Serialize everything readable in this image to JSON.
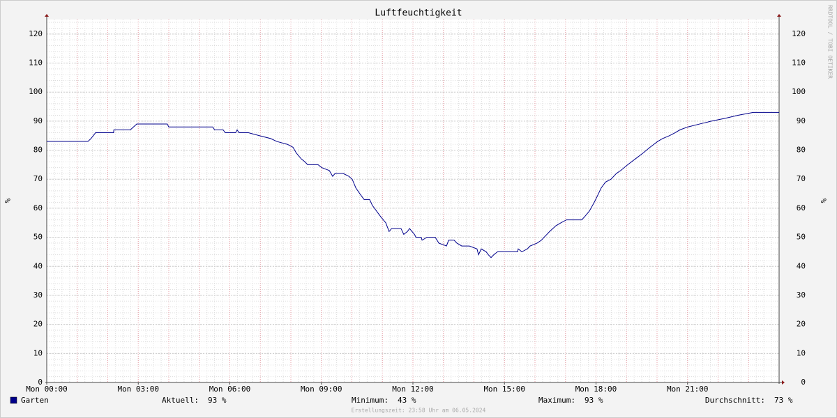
{
  "chart_data": {
    "type": "line",
    "title": "Luftfeuchtigkeit",
    "y_label": "%",
    "y2_label": "%",
    "watermark": "RRDTOOL / TOBI OETIKER",
    "footer": "Erstellungszeit: 23:58 Uhr am 06.05.2024",
    "x": [
      0,
      1.35,
      1.45,
      1.6,
      2.19,
      2.2,
      2.74,
      2.95,
      3.95,
      4.0,
      5.44,
      5.5,
      5.78,
      5.85,
      6.19,
      6.24,
      6.3,
      6.61,
      6.97,
      7.34,
      7.54,
      7.89,
      8.07,
      8.18,
      8.34,
      8.46,
      8.55,
      8.89,
      9.01,
      9.26,
      9.37,
      9.45,
      9.71,
      9.9,
      10.01,
      10.13,
      10.26,
      10.4,
      10.58,
      10.67,
      10.81,
      10.95,
      11.11,
      11.22,
      11.3,
      11.61,
      11.7,
      11.82,
      11.89,
      12.05,
      12.1,
      12.27,
      12.3,
      12.46,
      12.73,
      12.85,
      13.1,
      13.17,
      13.35,
      13.44,
      13.6,
      13.85,
      14.1,
      14.15,
      14.24,
      14.4,
      14.47,
      14.56,
      14.65,
      14.77,
      15.43,
      15.45,
      15.57,
      15.75,
      15.84,
      16.07,
      16.21,
      16.39,
      16.48,
      16.69,
      16.85,
      17.03,
      17.53,
      17.62,
      17.78,
      17.94,
      18.08,
      18.17,
      18.31,
      18.49,
      18.67,
      18.81,
      19.04,
      19.29,
      19.54,
      19.77,
      20.02,
      20.18,
      20.41,
      20.59,
      20.75,
      21.01,
      21.39,
      21.78,
      22.24,
      22.65,
      23.15,
      24
    ],
    "series": [
      {
        "name": "Garten",
        "color": "#00008b",
        "values": [
          83,
          83,
          84,
          86,
          86,
          87,
          87,
          89,
          89,
          88,
          88,
          87,
          87,
          86,
          86,
          87,
          86,
          86,
          85,
          84,
          83,
          82,
          81,
          79,
          77,
          76,
          75,
          75,
          74,
          73,
          71,
          72,
          72,
          71,
          70,
          67,
          65,
          63,
          63,
          61,
          59,
          57,
          55,
          52,
          53,
          53,
          51,
          52,
          53,
          51,
          50,
          50,
          49,
          50,
          50,
          48,
          47,
          49,
          49,
          48,
          47,
          47,
          46,
          44,
          46,
          45,
          44,
          43,
          44,
          45,
          45,
          46,
          45,
          46,
          47,
          48,
          49,
          51,
          52,
          54,
          55,
          56,
          56,
          57,
          59,
          62,
          65,
          67,
          69,
          70,
          72,
          73,
          75,
          77,
          79,
          81,
          83,
          84,
          85,
          86,
          87,
          88,
          89,
          90,
          91,
          92,
          93,
          93
        ]
      }
    ],
    "xlim": [
      0,
      24
    ],
    "xticks": [
      {
        "value": 0,
        "label": "Mon 00:00"
      },
      {
        "value": 3,
        "label": "Mon 03:00"
      },
      {
        "value": 6,
        "label": "Mon 06:00"
      },
      {
        "value": 9,
        "label": "Mon 09:00"
      },
      {
        "value": 12,
        "label": "Mon 12:00"
      },
      {
        "value": 15,
        "label": "Mon 15:00"
      },
      {
        "value": 18,
        "label": "Mon 18:00"
      },
      {
        "value": 21,
        "label": "Mon 21:00"
      }
    ],
    "ylim": [
      0,
      125
    ],
    "yticks": [
      0,
      10,
      20,
      30,
      40,
      50,
      60,
      70,
      80,
      90,
      100,
      110,
      120
    ],
    "grid": true,
    "legend_stats": {
      "labels": [
        "Aktuell:",
        "Minimum:",
        "Maximum:",
        "Durchschnitt:"
      ],
      "values": [
        93,
        43,
        93,
        73
      ],
      "value_labels": [
        "93 %",
        "43 %",
        "93 %",
        "73 %"
      ]
    }
  }
}
